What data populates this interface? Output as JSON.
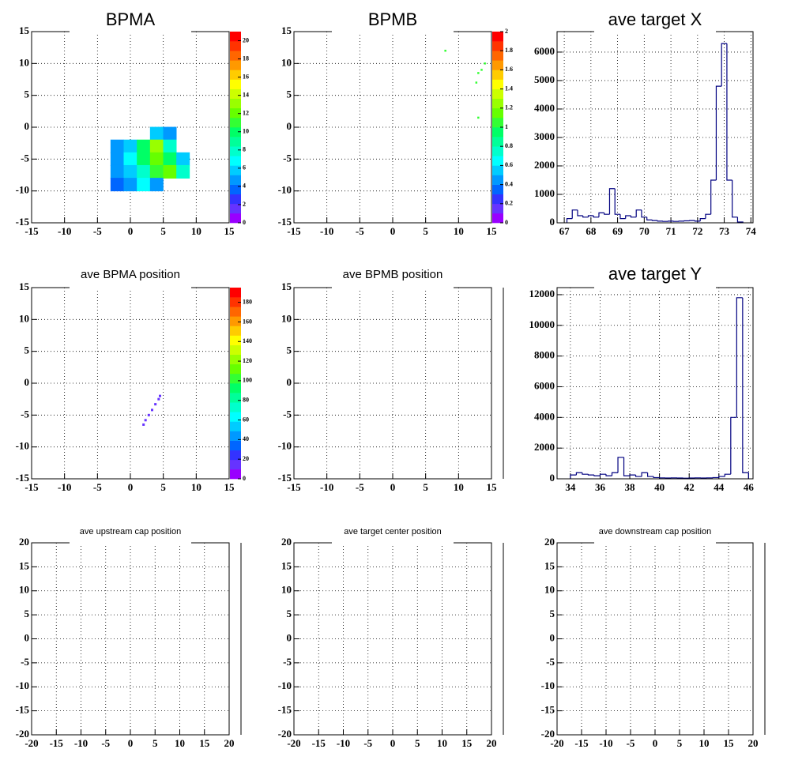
{
  "chart_data": [
    {
      "type": "heatmap",
      "title": "BPMA",
      "x": [
        4,
        6,
        -2,
        0,
        2,
        4,
        6,
        -2,
        0,
        2,
        4,
        6,
        8,
        -2,
        0,
        2,
        4,
        6,
        8,
        -2,
        0,
        2,
        4
      ],
      "y": [
        -1,
        -1,
        -3,
        -3,
        -3,
        -3,
        -3,
        -5,
        -5,
        -5,
        -5,
        -5,
        -5,
        -7,
        -7,
        -7,
        -7,
        -7,
        -7,
        -9,
        -9,
        -9,
        -9
      ],
      "z": [
        6,
        5,
        5,
        6,
        10,
        13,
        8,
        5,
        7,
        10,
        12,
        10,
        6,
        5,
        6,
        8,
        11,
        12,
        8,
        4,
        5,
        7,
        5
      ],
      "xlim": [
        -15,
        15
      ],
      "ylim": [
        -15,
        15
      ],
      "xticks": [
        -15,
        -10,
        -5,
        0,
        5,
        10,
        15
      ],
      "yticks": [
        -15,
        -10,
        -5,
        0,
        5,
        10,
        15
      ],
      "zlim": [
        0,
        21
      ],
      "zticks": [
        0,
        2,
        4,
        6,
        8,
        10,
        12,
        14,
        16,
        18,
        20
      ],
      "grid": true
    },
    {
      "type": "heatmap",
      "title": "BPMB",
      "x": [
        14,
        13.5,
        13,
        12.7,
        8,
        13
      ],
      "y": [
        10,
        9,
        8.5,
        7,
        12,
        1.5
      ],
      "z": [
        1,
        1,
        1,
        1,
        1,
        1
      ],
      "xlim": [
        -15,
        15
      ],
      "ylim": [
        -15,
        15
      ],
      "xticks": [
        -15,
        -10,
        -5,
        0,
        5,
        10,
        15
      ],
      "yticks": [
        -15,
        -10,
        -5,
        0,
        5,
        10,
        15
      ],
      "zlim": [
        0,
        2
      ],
      "zticks": [
        0,
        0.2,
        0.4,
        0.6,
        0.8,
        1,
        1.2,
        1.4,
        1.6,
        1.8,
        2
      ],
      "grid": true
    },
    {
      "type": "histogram",
      "title": "ave target X",
      "color": "#000080",
      "bins": [
        67.1,
        67.3,
        67.5,
        67.7,
        67.9,
        68.1,
        68.3,
        68.5,
        68.7,
        68.9,
        69.1,
        69.3,
        69.5,
        69.7,
        69.9,
        70.1,
        70.3,
        70.5,
        70.7,
        70.9,
        71.1,
        71.3,
        71.5,
        71.7,
        71.9,
        72.1,
        72.3,
        72.5,
        72.7,
        72.9,
        73.1,
        73.3,
        73.5,
        73.7
      ],
      "counts": [
        150,
        450,
        250,
        200,
        250,
        200,
        350,
        300,
        1200,
        300,
        150,
        250,
        200,
        450,
        200,
        100,
        80,
        60,
        50,
        60,
        50,
        60,
        70,
        80,
        60,
        150,
        300,
        1500,
        4800,
        6300,
        1500,
        200,
        30
      ],
      "xlim": [
        66.73,
        74.08
      ],
      "ylim": [
        0,
        6720
      ],
      "xticks": [
        67,
        68,
        69,
        70,
        71,
        72,
        73,
        74
      ],
      "yticks": [
        0,
        1000,
        2000,
        3000,
        4000,
        5000,
        6000
      ],
      "grid": true
    },
    {
      "type": "heatmap",
      "title": "ave BPMA position",
      "x": [
        2,
        2.3,
        2.8,
        3.3,
        3.8,
        4.3,
        4.5
      ],
      "y": [
        -6.5,
        -5.8,
        -5,
        -4.2,
        -3.3,
        -2.5,
        -2
      ],
      "z": [
        15,
        10,
        10,
        10,
        10,
        10,
        10
      ],
      "xlim": [
        -15,
        15
      ],
      "ylim": [
        -15,
        15
      ],
      "xticks": [
        -15,
        -10,
        -5,
        0,
        5,
        10,
        15
      ],
      "yticks": [
        -15,
        -10,
        -5,
        0,
        5,
        10,
        15
      ],
      "zlim": [
        0,
        195
      ],
      "zticks": [
        0,
        20,
        40,
        60,
        80,
        100,
        120,
        140,
        160,
        180
      ],
      "grid": true
    },
    {
      "type": "heatmap",
      "title": "ave BPMB position",
      "x": [],
      "y": [],
      "z": [],
      "xlim": [
        -15,
        15
      ],
      "ylim": [
        -15,
        15
      ],
      "xticks": [
        -15,
        -10,
        -5,
        0,
        5,
        10,
        15
      ],
      "yticks": [
        -15,
        -10,
        -5,
        0,
        5,
        10,
        15
      ],
      "grid": true
    },
    {
      "type": "histogram",
      "title": "ave target Y",
      "color": "#000080",
      "bins": [
        34.0,
        34.4,
        34.8,
        35.2,
        35.6,
        36.0,
        36.4,
        36.8,
        37.2,
        37.6,
        38.0,
        38.4,
        38.8,
        39.2,
        39.6,
        40.0,
        40.4,
        40.8,
        41.2,
        41.6,
        42.0,
        42.4,
        42.8,
        43.2,
        43.6,
        44.0,
        44.4,
        44.8,
        45.2,
        45.6,
        46.0
      ],
      "counts": [
        250,
        400,
        300,
        250,
        200,
        300,
        200,
        400,
        1400,
        200,
        250,
        150,
        400,
        150,
        80,
        60,
        50,
        60,
        50,
        40,
        50,
        60,
        50,
        60,
        80,
        150,
        300,
        4000,
        11800,
        400
      ],
      "xlim": [
        33.1,
        46.3
      ],
      "ylim": [
        0,
        12460
      ],
      "xticks": [
        34,
        36,
        38,
        40,
        42,
        44,
        46
      ],
      "yticks": [
        0,
        2000,
        4000,
        6000,
        8000,
        10000,
        12000
      ],
      "grid": true
    },
    {
      "type": "heatmap",
      "title": "ave upstream cap position",
      "x": [],
      "y": [],
      "z": [],
      "xlim": [
        -20,
        20
      ],
      "ylim": [
        -20,
        20
      ],
      "xticks": [
        -20,
        -15,
        -10,
        -5,
        0,
        5,
        10,
        15,
        20
      ],
      "yticks": [
        -20,
        -15,
        -10,
        -5,
        0,
        5,
        10,
        15,
        20
      ],
      "grid": true
    },
    {
      "type": "heatmap",
      "title": "ave target center  position",
      "x": [],
      "y": [],
      "z": [],
      "xlim": [
        -20,
        20
      ],
      "ylim": [
        -20,
        20
      ],
      "xticks": [
        -20,
        -15,
        -10,
        -5,
        0,
        5,
        10,
        15,
        20
      ],
      "yticks": [
        -20,
        -15,
        -10,
        -5,
        0,
        5,
        10,
        15,
        20
      ],
      "grid": true
    },
    {
      "type": "heatmap",
      "title": "ave downstream cap position",
      "x": [],
      "y": [],
      "z": [],
      "xlim": [
        -20,
        20
      ],
      "ylim": [
        -20,
        20
      ],
      "xticks": [
        -20,
        -15,
        -10,
        -5,
        0,
        5,
        10,
        15,
        20
      ],
      "yticks": [
        -20,
        -15,
        -10,
        -5,
        0,
        5,
        10,
        15,
        20
      ],
      "grid": true
    }
  ],
  "palette": [
    "#9900ff",
    "#6633ff",
    "#3333ff",
    "#0066ff",
    "#0099ff",
    "#00ccff",
    "#00ffff",
    "#00ffcc",
    "#00ff99",
    "#00ff66",
    "#33ff33",
    "#66ff00",
    "#99ff00",
    "#ccff00",
    "#ffff00",
    "#ffcc00",
    "#ff9900",
    "#ff6600",
    "#ff3300",
    "#ff0000"
  ]
}
